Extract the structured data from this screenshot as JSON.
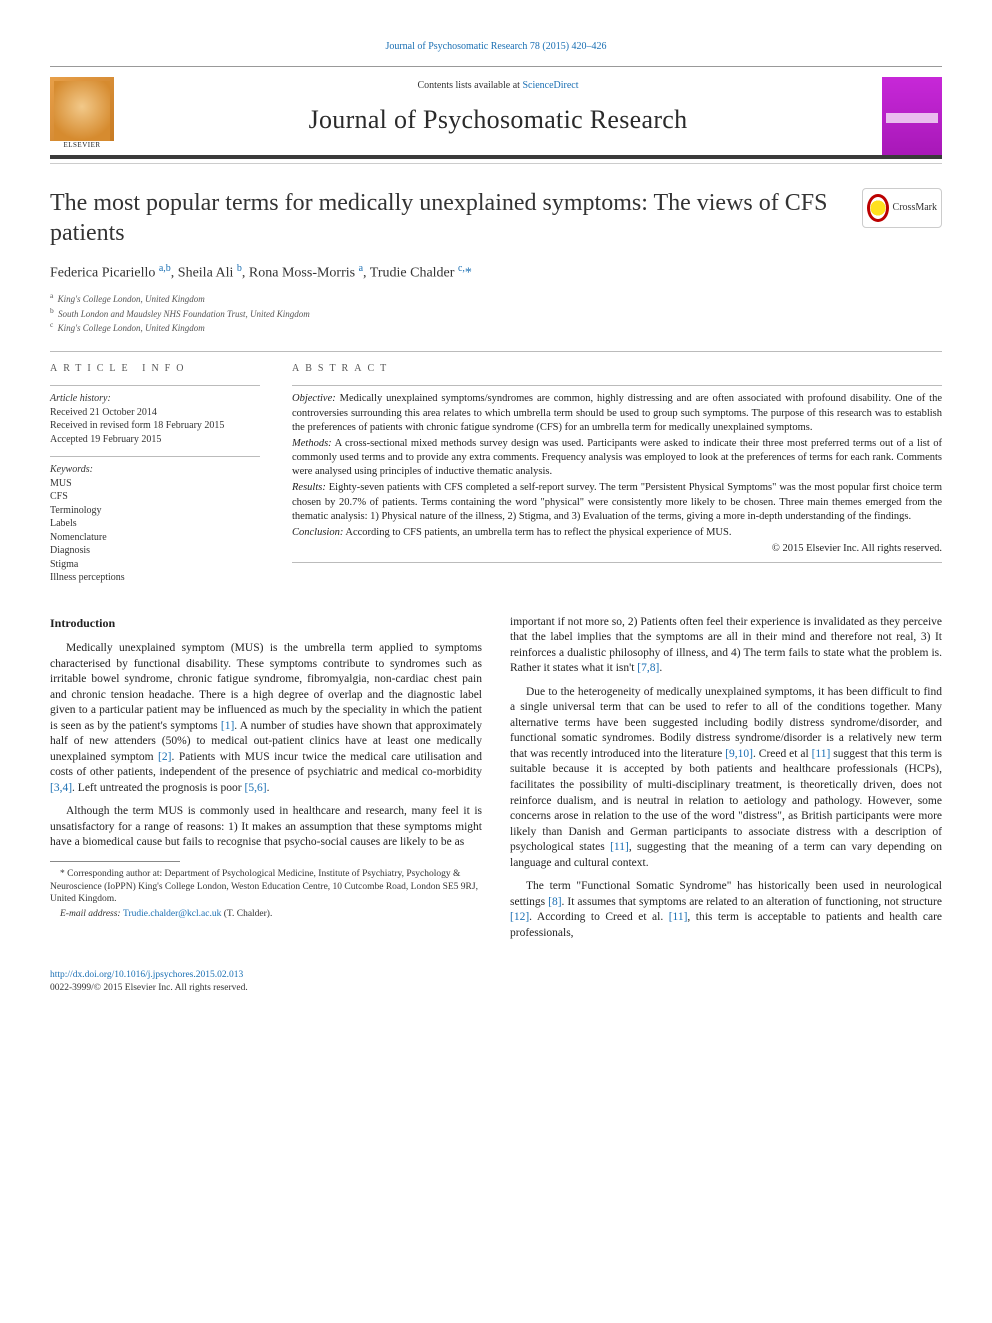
{
  "top_link": "Journal of Psychosomatic Research 78 (2015) 420–426",
  "header": {
    "contents_prefix": "Contents lists available at ",
    "contents_link": "ScienceDirect",
    "journal_name": "Journal of Psychosomatic Research",
    "elsevier": "ELSEVIER"
  },
  "crossmark": "CrossMark",
  "title": "The most popular terms for medically unexplained symptoms: The views of CFS patients",
  "authors_html": "Federica Picariello <sup>a,b</sup>, Sheila Ali <sup>b</sup>, Rona Moss-Morris <sup>a</sup>, Trudie Chalder <sup>c,</sup><span class='star'>*</span>",
  "affiliations": [
    {
      "sup": "a",
      "text": "King's College London, United Kingdom"
    },
    {
      "sup": "b",
      "text": "South London and Maudsley NHS Foundation Trust, United Kingdom"
    },
    {
      "sup": "c",
      "text": "King's College London, United Kingdom"
    }
  ],
  "article_info": {
    "heading": "ARTICLE INFO",
    "history_label": "Article history:",
    "history": [
      "Received 21 October 2014",
      "Received in revised form 18 February 2015",
      "Accepted 19 February 2015"
    ],
    "keywords_label": "Keywords:",
    "keywords": [
      "MUS",
      "CFS",
      "Terminology",
      "Labels",
      "Nomenclature",
      "Diagnosis",
      "Stigma",
      "Illness perceptions"
    ]
  },
  "abstract": {
    "heading": "ABSTRACT",
    "objective_label": "Objective:",
    "objective": "Medically unexplained symptoms/syndromes are common, highly distressing and are often associated with profound disability. One of the controversies surrounding this area relates to which umbrella term should be used to group such symptoms. The purpose of this research was to establish the preferences of patients with chronic fatigue syndrome (CFS) for an umbrella term for medically unexplained symptoms.",
    "methods_label": "Methods:",
    "methods": "A cross-sectional mixed methods survey design was used. Participants were asked to indicate their three most preferred terms out of a list of commonly used terms and to provide any extra comments. Frequency analysis was employed to look at the preferences of terms for each rank. Comments were analysed using principles of inductive thematic analysis.",
    "results_label": "Results:",
    "results": "Eighty-seven patients with CFS completed a self-report survey. The term \"Persistent Physical Symptoms\" was the most popular first choice term chosen by 20.7% of patients. Terms containing the word \"physical\" were consistently more likely to be chosen. Three main themes emerged from the thematic analysis: 1) Physical nature of the illness, 2) Stigma, and 3) Evaluation of the terms, giving a more in-depth understanding of the findings.",
    "conclusion_label": "Conclusion:",
    "conclusion": "According to CFS patients, an umbrella term has to reflect the physical experience of MUS.",
    "copyright": "© 2015 Elsevier Inc. All rights reserved."
  },
  "intro_heading": "Introduction",
  "left_col": {
    "p1_a": "Medically unexplained symptom (MUS) is the umbrella term applied to symptoms characterised by functional disability. These symptoms contribute to syndromes such as irritable bowel syndrome, chronic fatigue syndrome, fibromyalgia, non-cardiac chest pain and chronic tension headache. There is a high degree of overlap and the diagnostic label given to a particular patient may be influenced as much by the speciality in which the patient is seen as by the patient's symptoms ",
    "ref1": "[1]",
    "p1_b": ". A number of studies have shown that approximately half of new attenders (50%) to medical out-patient clinics have at least one medically unexplained symptom ",
    "ref2": "[2]",
    "p1_c": ". Patients with MUS incur twice the medical care utilisation and costs of other patients, independent of the presence of psychiatric and medical co-morbidity ",
    "ref34": "[3,4]",
    "p1_d": ". Left untreated the prognosis is poor ",
    "ref56": "[5,6]",
    "p1_e": ".",
    "p2": "Although the term MUS is commonly used in healthcare and research, many feel it is unsatisfactory for a range of reasons: 1) It makes an assumption that these symptoms might have a biomedical cause but fails to recognise that psycho-social causes are likely to be as"
  },
  "right_col": {
    "p1_a": "important if not more so, 2) Patients often feel their experience is invalidated as they perceive that the label implies that the symptoms are all in their mind and therefore not real, 3) It reinforces a dualistic philosophy of illness, and 4) The term fails to state what the problem is. Rather it states what it isn't ",
    "ref78": "[7,8]",
    "p1_b": ".",
    "p2_a": "Due to the heterogeneity of medically unexplained symptoms, it has been difficult to find a single universal term that can be used to refer to all of the conditions together. Many alternative terms have been suggested including bodily distress syndrome/disorder, and functional somatic syndromes. Bodily distress syndrome/disorder is a relatively new term that was recently introduced into the literature ",
    "ref910": "[9,10]",
    "p2_b": ". Creed et al ",
    "ref11a": "[11]",
    "p2_c": " suggest that this term is suitable because it is accepted by both patients and healthcare professionals (HCPs), facilitates the possibility of multi-disciplinary treatment, is theoretically driven, does not reinforce dualism, and is neutral in relation to aetiology and pathology. However, some concerns arose in relation to the use of the word \"distress\", as British participants were more likely than Danish and German participants to associate distress with a description of psychological states ",
    "ref11b": "[11]",
    "p2_d": ", suggesting that the meaning of a term can vary depending on language and cultural context.",
    "p3_a": "The term \"Functional Somatic Syndrome\" has historically been used in neurological settings ",
    "ref8": "[8]",
    "p3_b": ". It assumes that symptoms are related to an alteration of functioning, not structure ",
    "ref12": "[12]",
    "p3_c": ". According to Creed et al. ",
    "ref11c": "[11]",
    "p3_d": ", this term is acceptable to patients and health care professionals,"
  },
  "footnotes": {
    "corr_label": "* ",
    "corr": "Corresponding author at: Department of Psychological Medicine, Institute of Psychiatry, Psychology & Neuroscience (IoPPN) King's College London, Weston Education Centre, 10 Cutcombe Road, London SE5 9RJ, United Kingdom.",
    "email_label": "E-mail address: ",
    "email": "Trudie.chalder@kcl.ac.uk",
    "email_suffix": " (T. Chalder)."
  },
  "bottom": {
    "doi": "http://dx.doi.org/10.1016/j.jpsychores.2015.02.013",
    "issn": "0022-3999/© 2015 Elsevier Inc. All rights reserved."
  },
  "colors": {
    "link": "#1a6fb3",
    "text": "#222222",
    "rule_dark": "#3a3a3a"
  }
}
